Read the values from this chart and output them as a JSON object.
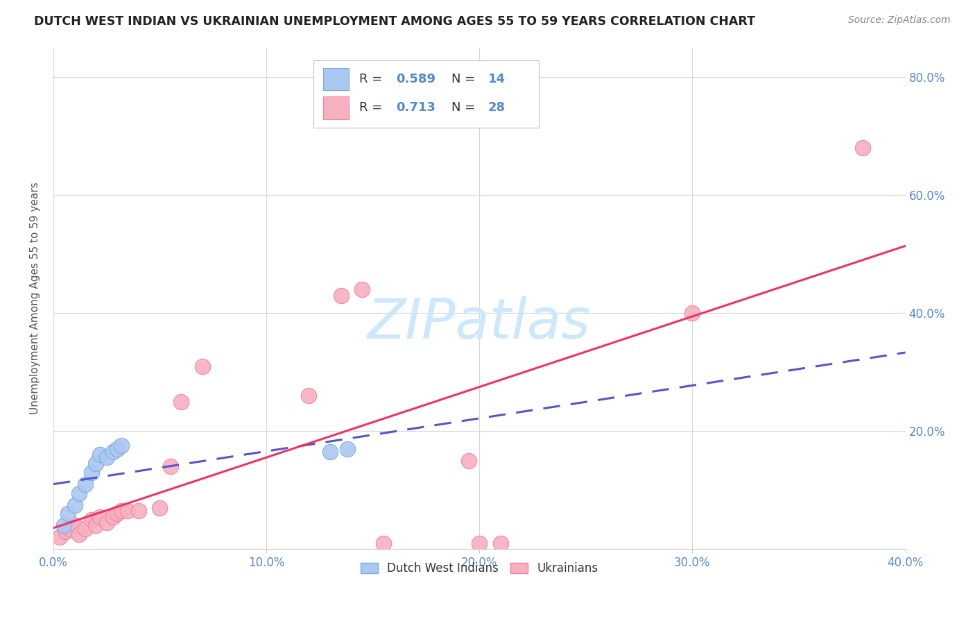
{
  "title": "DUTCH WEST INDIAN VS UKRAINIAN UNEMPLOYMENT AMONG AGES 55 TO 59 YEARS CORRELATION CHART",
  "source": "Source: ZipAtlas.com",
  "ylabel": "Unemployment Among Ages 55 to 59 years",
  "xlim": [
    0.0,
    0.4
  ],
  "ylim": [
    0.0,
    0.85
  ],
  "xticks": [
    0.0,
    0.1,
    0.2,
    0.3,
    0.4
  ],
  "yticks": [
    0.0,
    0.2,
    0.4,
    0.6,
    0.8
  ],
  "xticklabels": [
    "0.0%",
    "10.0%",
    "20.0%",
    "30.0%",
    "40.0%"
  ],
  "yticklabels_right": [
    "",
    "20.0%",
    "40.0%",
    "60.0%",
    "80.0%"
  ],
  "background_color": "#ffffff",
  "grid_color": "#d8d8d8",
  "dwi_color": "#aac8f0",
  "ukr_color": "#f8b0c0",
  "dwi_edge_color": "#7aaade",
  "ukr_edge_color": "#f080a0",
  "dwi_line_color": "#5555cc",
  "ukr_line_color": "#ee3366",
  "tick_color": "#5588cc",
  "watermark_color": "#cce8fa",
  "watermark": "ZIPatlas",
  "dwi_R": 0.589,
  "dwi_N": 14,
  "ukr_R": 0.713,
  "ukr_N": 28,
  "dwi_x": [
    0.005,
    0.007,
    0.01,
    0.012,
    0.015,
    0.018,
    0.02,
    0.022,
    0.025,
    0.028,
    0.03,
    0.032,
    0.13,
    0.138
  ],
  "dwi_y": [
    0.04,
    0.06,
    0.075,
    0.095,
    0.11,
    0.13,
    0.145,
    0.16,
    0.155,
    0.165,
    0.17,
    0.175,
    0.165,
    0.17
  ],
  "ukr_x": [
    0.003,
    0.006,
    0.008,
    0.01,
    0.012,
    0.015,
    0.018,
    0.02,
    0.022,
    0.025,
    0.028,
    0.03,
    0.032,
    0.035,
    0.04,
    0.05,
    0.055,
    0.06,
    0.07,
    0.12,
    0.135,
    0.145,
    0.155,
    0.195,
    0.2,
    0.21,
    0.3,
    0.38
  ],
  "ukr_y": [
    0.02,
    0.03,
    0.035,
    0.04,
    0.025,
    0.035,
    0.05,
    0.04,
    0.055,
    0.045,
    0.055,
    0.06,
    0.065,
    0.065,
    0.065,
    0.07,
    0.14,
    0.25,
    0.31,
    0.26,
    0.43,
    0.44,
    0.01,
    0.15,
    0.01,
    0.01,
    0.4,
    0.68
  ],
  "figsize": [
    14.06,
    8.92
  ],
  "dpi": 100
}
